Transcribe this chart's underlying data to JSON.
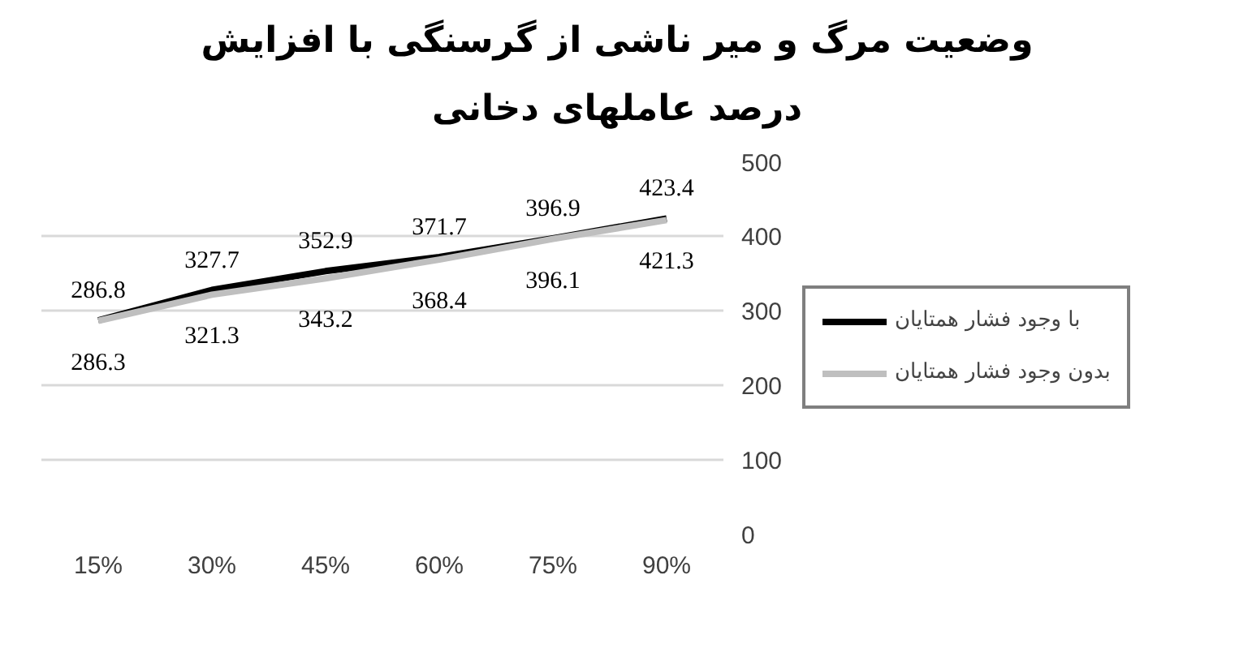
{
  "chart_data": {
    "type": "line",
    "title": "وضعیت مرگ و میر ناشی از گرسنگی با افزایش\nدرصد عاملهای دخانی",
    "categories": [
      "15%",
      "30%",
      "45%",
      "60%",
      "75%",
      "90%"
    ],
    "series": [
      {
        "name": "با وجود فشار همتایان",
        "color": "#000000",
        "values": [
          286.8,
          327.7,
          352.9,
          371.7,
          396.9,
          423.4
        ]
      },
      {
        "name": "بدون وجود فشار همتایان",
        "color": "#bfbfbf",
        "values": [
          286.3,
          321.3,
          343.2,
          368.4,
          396.1,
          421.3
        ]
      }
    ],
    "ylim": [
      0,
      500
    ],
    "yticks": [
      0,
      100,
      200,
      300,
      400,
      500
    ],
    "grid": "y",
    "legend": "right",
    "data_labels": true,
    "marker": "none",
    "line_style": "solid"
  }
}
